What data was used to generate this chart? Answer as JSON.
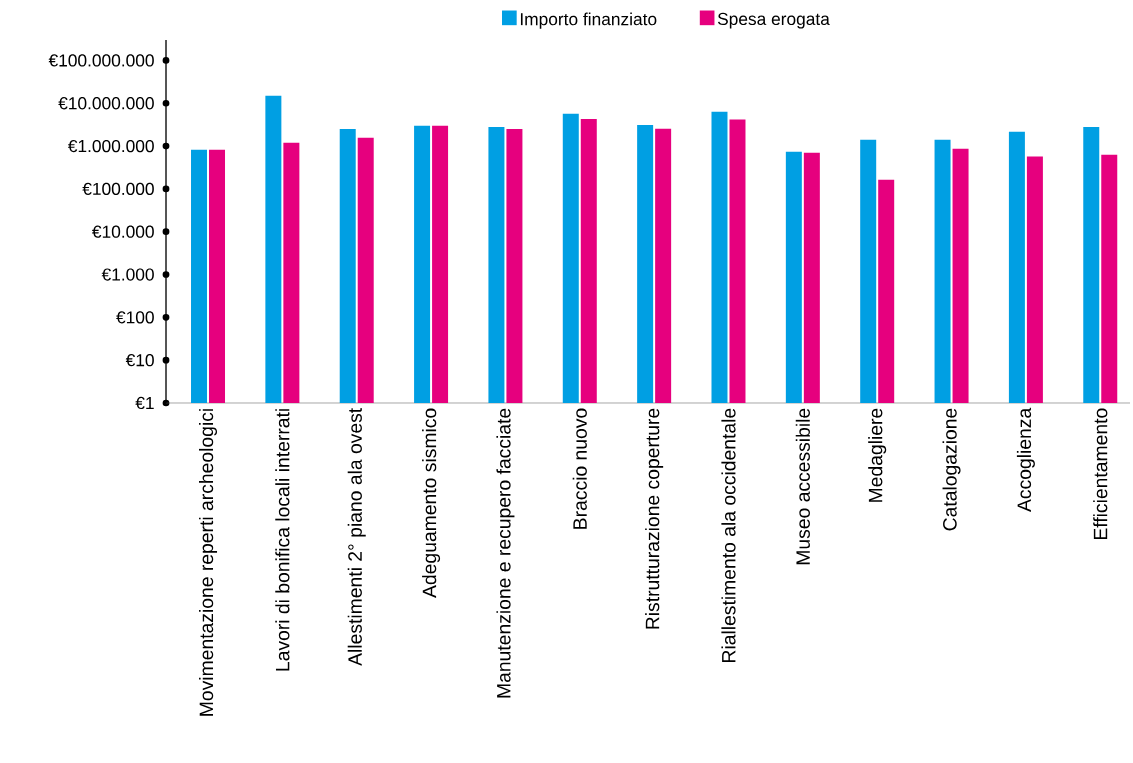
{
  "chart_data": {
    "type": "bar",
    "log": true,
    "legend": "top",
    "categories": [
      "Movimentazione reperti archeologici",
      "Lavori di bonifica locali interrati",
      "Allestimenti 2° piano ala ovest",
      "Adeguamento sismico",
      "Manutenzione e recupero facciate",
      "Braccio nuovo",
      "Ristrutturazione coperture",
      "Riallestimento ala occidentale",
      "Museo accessibile",
      "Medagliere",
      "Catalogazione",
      "Accoglienza",
      "Efficientamento"
    ],
    "series": [
      {
        "name": "Importo finanziato",
        "color": "#009fe3",
        "values": [
          820000,
          15000000,
          2500000,
          3000000,
          2800000,
          5700000,
          3100000,
          6300000,
          735000,
          1400000,
          1400000,
          2150000,
          2800000
        ]
      },
      {
        "name": "Spesa erogata",
        "color": "#e6007e",
        "values": [
          820000,
          1200000,
          1560000,
          3000000,
          2500000,
          4300000,
          2550000,
          4200000,
          700000,
          163000,
          865000,
          570000,
          630000
        ]
      }
    ],
    "ylim": [
      1,
      300000000
    ],
    "yticks": [
      {
        "value": 1,
        "label": "€1"
      },
      {
        "value": 10,
        "label": "€10"
      },
      {
        "value": 100,
        "label": "€100"
      },
      {
        "value": 1000,
        "label": "€1.000"
      },
      {
        "value": 10000,
        "label": "€10.000"
      },
      {
        "value": 100000,
        "label": "€100.000"
      },
      {
        "value": 1000000,
        "label": "€1.000.000"
      },
      {
        "value": 10000000,
        "label": "€10.000.000"
      },
      {
        "value": 100000000,
        "label": "€100.000.000"
      }
    ]
  }
}
